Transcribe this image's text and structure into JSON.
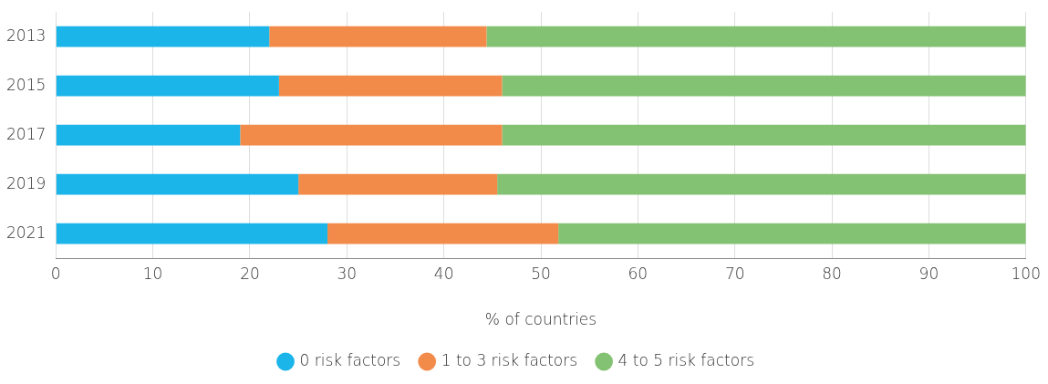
{
  "chart_data": {
    "type": "bar",
    "orientation": "horizontal",
    "stacked": true,
    "xlabel": "% of countries",
    "categories": [
      "2013",
      "2015",
      "2017",
      "2019",
      "2021"
    ],
    "series": [
      {
        "name": "0 risk factors",
        "color": "#1cb5e9",
        "values": [
          22,
          23,
          19,
          25,
          28
        ]
      },
      {
        "name": "1 to 3 risk factors",
        "color": "#f28b49",
        "values": [
          22.4,
          23,
          27,
          20.5,
          23.8
        ]
      },
      {
        "name": "4 to 5 risk factors",
        "color": "#84c273",
        "values": [
          55.6,
          54,
          54,
          54.5,
          48.2
        ]
      }
    ],
    "xlim": [
      0,
      100
    ],
    "xticks": [
      0,
      10,
      20,
      30,
      40,
      50,
      60,
      70,
      80,
      90,
      100
    ],
    "grid": "x",
    "legend": "bottom"
  }
}
